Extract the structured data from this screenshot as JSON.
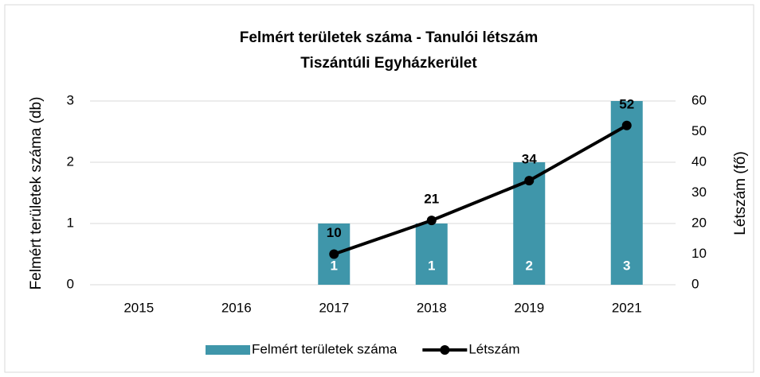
{
  "chart_data": {
    "type": "bar-line",
    "title": "Felmért területek száma - Tanulói létszám",
    "subtitle": "Tiszántúli Egyházkerület",
    "y_label": "Felmért területek száma (db)",
    "y2_label": "Létszám (fő)",
    "categories": [
      "2015",
      "2016",
      "2017",
      "2018",
      "2019",
      "2021"
    ],
    "series": [
      {
        "name": "Felmért területek száma",
        "type": "bar",
        "color": "#3f96aa",
        "values": [
          null,
          null,
          1,
          1,
          2,
          3
        ]
      },
      {
        "name": "Létszám",
        "type": "line",
        "axis": "y2",
        "color": "#000000",
        "values": [
          null,
          null,
          10,
          21,
          34,
          52
        ]
      }
    ],
    "ylim": [
      0,
      3
    ],
    "yticks": [
      0,
      1,
      2,
      3
    ],
    "y2lim": [
      0,
      60
    ],
    "y2ticks": [
      0,
      10,
      20,
      30,
      40,
      50,
      60
    ],
    "grid": true,
    "legend": "bottom"
  }
}
